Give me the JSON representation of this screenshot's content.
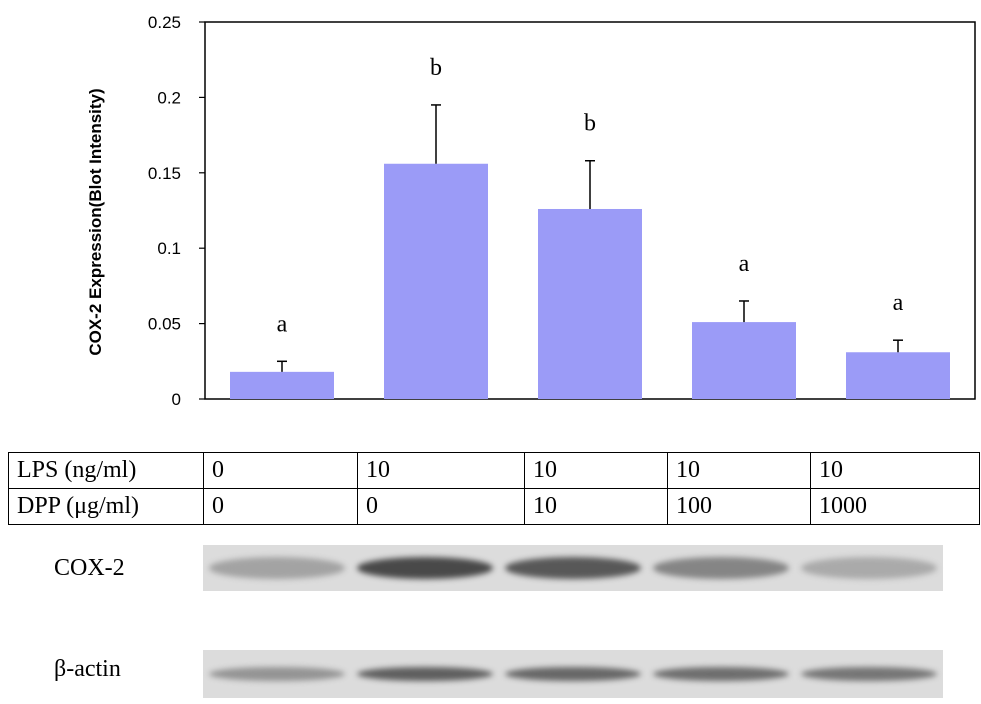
{
  "chart_data": {
    "type": "bar",
    "ylabel": "COX-2 Expression(Blot Intensity)",
    "ylim": [
      0,
      0.25
    ],
    "yticks": [
      "0",
      "0.05",
      "0.1",
      "0.15",
      "0.2",
      "0.25"
    ],
    "ytick_values": [
      0,
      0.05,
      0.1,
      0.15,
      0.2,
      0.25
    ],
    "values": [
      0.018,
      0.156,
      0.126,
      0.051,
      0.031
    ],
    "errors": [
      0.007,
      0.039,
      0.032,
      0.014,
      0.008
    ],
    "significance": [
      "a",
      "b",
      "b",
      "a",
      "a"
    ],
    "bar_color": "#9b9bf7",
    "grid": false
  },
  "conditions": {
    "rows": [
      {
        "label": "LPS (ng/ml)",
        "values": [
          "0",
          "10",
          "10",
          "10",
          "10"
        ]
      },
      {
        "label": "DPP (μg/ml)",
        "values": [
          "0",
          "0",
          "10",
          "100",
          "1000"
        ]
      }
    ]
  },
  "blots": {
    "cox2_label": "COX-2",
    "actin_label": "β-actin",
    "cox2_intensity": [
      0.25,
      0.85,
      0.75,
      0.45,
      0.2
    ],
    "actin_intensity": [
      0.35,
      0.7,
      0.65,
      0.6,
      0.55
    ]
  }
}
